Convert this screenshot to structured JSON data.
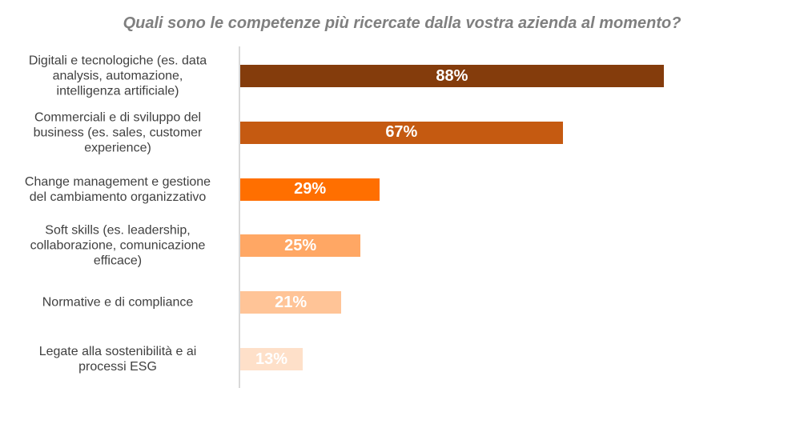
{
  "chart_data": {
    "type": "bar",
    "orientation": "horizontal",
    "title": "Quali sono le competenze più ricercate dalla vostra azienda al momento?",
    "categories": [
      "Digitali e tecnologiche (es. data\nanalysis, automazione,\nintelligenza artificiale)",
      "Commerciali e di sviluppo del\nbusiness (es. sales, customer\nexperience)",
      "Change management e gestione\ndel cambiamento organizzativo",
      "Soft skills (es. leadership,\ncollaborazione, comunicazione\nefficace)",
      "Normative e di compliance",
      "Legate alla sostenibilità e ai\nprocessi ESG"
    ],
    "values": [
      88,
      67,
      29,
      25,
      21,
      13
    ],
    "data_labels": [
      "88%",
      "67%",
      "29%",
      "25%",
      "21%",
      "13%"
    ],
    "colors": [
      "#843c0c",
      "#c55a11",
      "#ff6f00",
      "#ffa764",
      "#ffc497",
      "#fee0c9"
    ],
    "unit": "%",
    "xlim": [
      0,
      100
    ],
    "xlabel": "",
    "ylabel": "",
    "grid": false,
    "legend": "none"
  }
}
